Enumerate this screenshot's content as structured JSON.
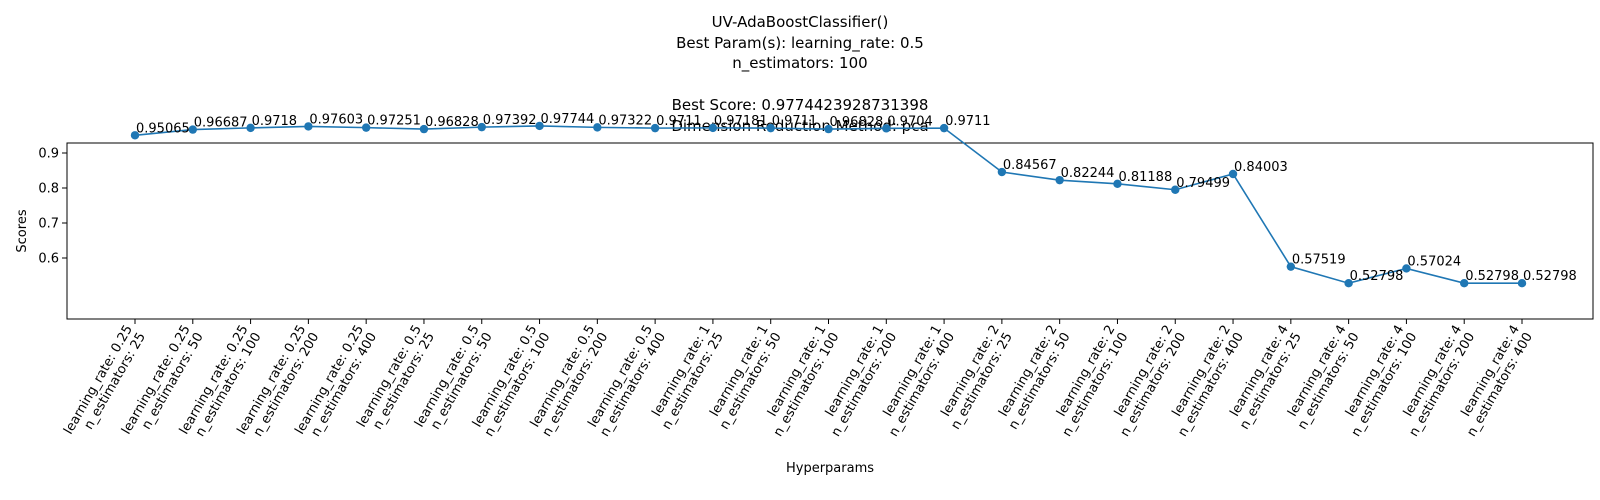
{
  "chart_data": {
    "type": "line",
    "title_lines": [
      "UV-AdaBoostClassifier()",
      "Best Param(s): learning_rate: 0.5",
      "n_estimators: 100",
      "",
      "Best Score: 0.9774423928731398",
      "Dimension Reduction Method: pca"
    ],
    "xlabel": "Hyperparams",
    "ylabel": "Scores",
    "ylim": [
      0.5,
      1.0
    ],
    "yticks": [
      "0.6",
      "0.7",
      "0.8",
      "0.9"
    ],
    "grid": false,
    "marker": "circle",
    "series_color": "#1f77b4",
    "categories": [
      [
        "learning_rate: 0.25",
        "n_estimators: 25"
      ],
      [
        "learning_rate: 0.25",
        "n_estimators: 50"
      ],
      [
        "learning_rate: 0.25",
        "n_estimators: 100"
      ],
      [
        "learning_rate: 0.25",
        "n_estimators: 200"
      ],
      [
        "learning_rate: 0.25",
        "n_estimators: 400"
      ],
      [
        "learning_rate: 0.5",
        "n_estimators: 25"
      ],
      [
        "learning_rate: 0.5",
        "n_estimators: 50"
      ],
      [
        "learning_rate: 0.5",
        "n_estimators: 100"
      ],
      [
        "learning_rate: 0.5",
        "n_estimators: 200"
      ],
      [
        "learning_rate: 0.5",
        "n_estimators: 400"
      ],
      [
        "learning_rate: 1",
        "n_estimators: 25"
      ],
      [
        "learning_rate: 1",
        "n_estimators: 50"
      ],
      [
        "learning_rate: 1",
        "n_estimators: 100"
      ],
      [
        "learning_rate: 1",
        "n_estimators: 200"
      ],
      [
        "learning_rate: 1",
        "n_estimators: 400"
      ],
      [
        "learning_rate: 2",
        "n_estimators: 25"
      ],
      [
        "learning_rate: 2",
        "n_estimators: 50"
      ],
      [
        "learning_rate: 2",
        "n_estimators: 100"
      ],
      [
        "learning_rate: 2",
        "n_estimators: 200"
      ],
      [
        "learning_rate: 2",
        "n_estimators: 400"
      ],
      [
        "learning_rate: 4",
        "n_estimators: 25"
      ],
      [
        "learning_rate: 4",
        "n_estimators: 50"
      ],
      [
        "learning_rate: 4",
        "n_estimators: 100"
      ],
      [
        "learning_rate: 4",
        "n_estimators: 200"
      ],
      [
        "learning_rate: 4",
        "n_estimators: 400"
      ]
    ],
    "values": [
      0.95065,
      0.96687,
      0.9718,
      0.97603,
      0.97251,
      0.96828,
      0.97392,
      0.97744,
      0.97322,
      0.9711,
      0.97181,
      0.9711,
      0.96828,
      0.9704,
      0.9711,
      0.84567,
      0.82244,
      0.81188,
      0.79499,
      0.84003,
      0.57519,
      0.52798,
      0.57024,
      0.52798,
      0.52798
    ],
    "data_labels": [
      "0.95065",
      "0.96687",
      "0.9718",
      "0.97603",
      "0.97251",
      "0.96828",
      "0.97392",
      "0.97744",
      "0.97322",
      "0.9711",
      "0.97181",
      "0.9711",
      "0.96828",
      "0.9704",
      "0.9711",
      "0.84567",
      "0.82244",
      "0.81188",
      "0.79499",
      "0.84003",
      "0.57519",
      "0.52798",
      "0.57024",
      "0.52798",
      "0.52798"
    ]
  }
}
